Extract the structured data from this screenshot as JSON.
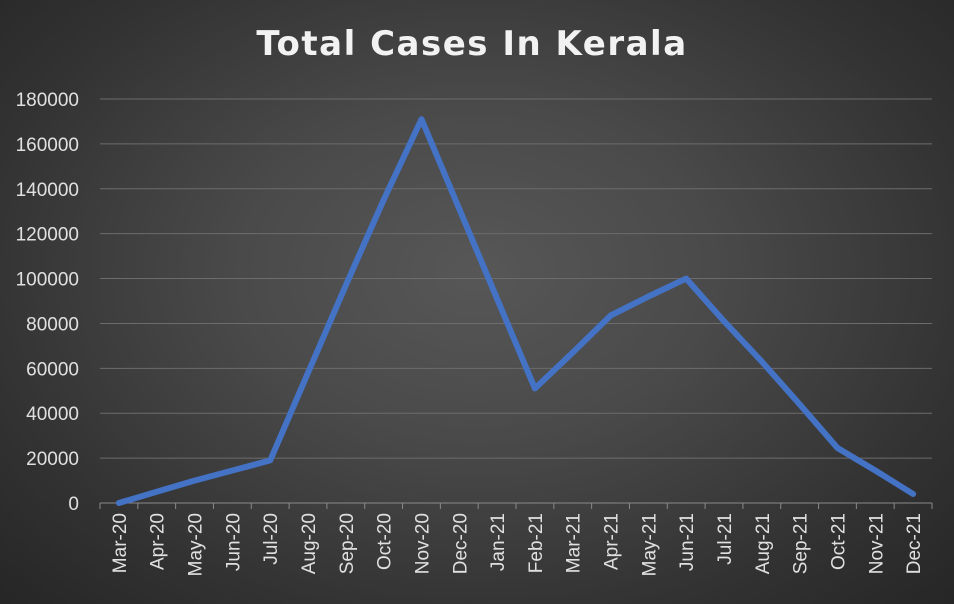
{
  "chart_data": {
    "type": "line",
    "title": "Total Cases In Kerala",
    "xlabel": "",
    "ylabel": "",
    "categories": [
      "Mar-20",
      "Apr-20",
      "May-20",
      "Jun-20",
      "Jul-20",
      "Aug-20",
      "Sep-20",
      "Oct-20",
      "Nov-20",
      "Dec-20",
      "Jan-21",
      "Feb-21",
      "Mar-21",
      "Apr-21",
      "May-21",
      "Jun-21",
      "Jul-21",
      "Aug-21",
      "Sep-21",
      "Oct-21",
      "Nov-21",
      "Dec-21"
    ],
    "series": [
      {
        "name": "",
        "color": "#4472c4",
        "values": [
          0,
          5000,
          10000,
          14500,
          19000,
          58000,
          97000,
          135000,
          171000,
          131000,
          91000,
          51000,
          67000,
          83500,
          92000,
          100000,
          81000,
          63000,
          44000,
          24500,
          14500,
          4000
        ]
      }
    ],
    "ylim": [
      0,
      180000
    ],
    "yticks": [
      0,
      20000,
      40000,
      60000,
      80000,
      100000,
      120000,
      140000,
      160000,
      180000
    ],
    "ytick_labels": [
      "0",
      "20000",
      "40000",
      "60000",
      "80000",
      "100000",
      "120000",
      "140000",
      "160000",
      "180000"
    ],
    "grid": true,
    "legend": "none"
  }
}
